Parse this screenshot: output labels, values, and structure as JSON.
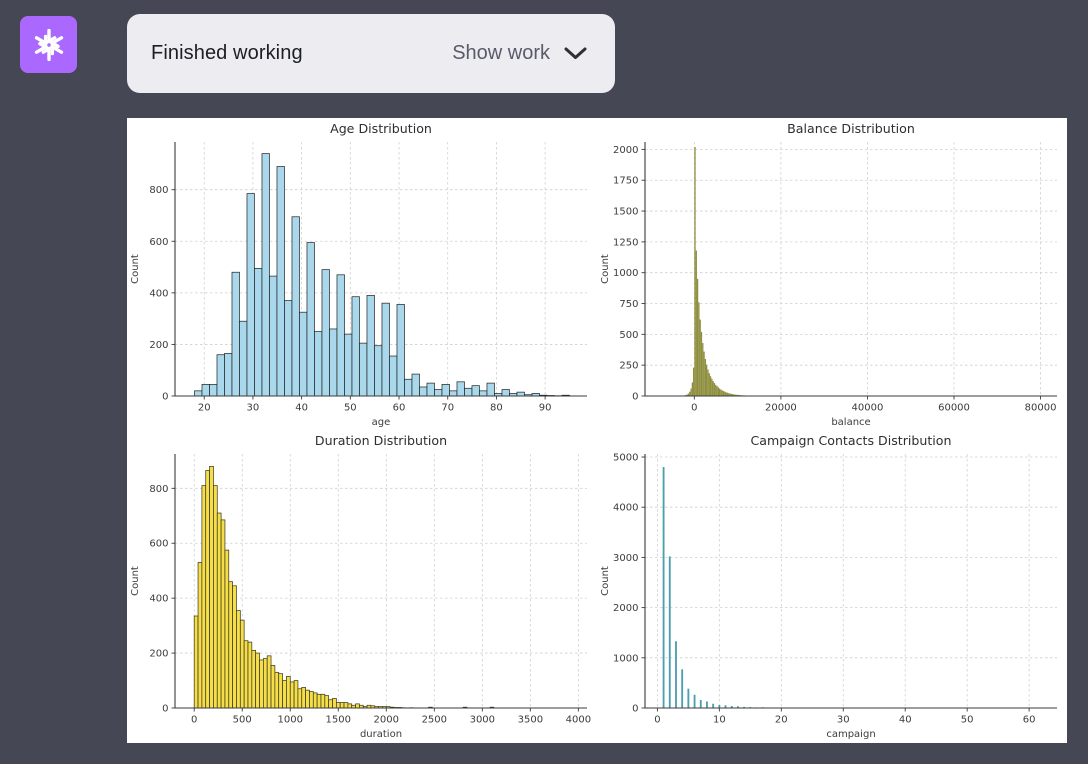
{
  "page": {
    "background_color": "#454754",
    "panel_color": "#ffffff"
  },
  "header": {
    "avatar_color": "#AB68FF",
    "avatar_icon": "openai-logo",
    "card_color": "#ECECF1",
    "status_text": "Finished working",
    "action_label": "Show work",
    "chevron_icon": "chevron-down"
  },
  "chart_data": [
    {
      "type": "bar",
      "title": "Age Distribution",
      "xlabel": "age",
      "ylabel": "Count",
      "bar_color": "#a9d8ec",
      "edge_color": "#1f1f1f",
      "has_edge": true,
      "bar_rel_width": 1,
      "bin_start": 18,
      "bin_width": 1.54,
      "values": [
        20,
        45,
        45,
        160,
        165,
        480,
        290,
        785,
        495,
        940,
        465,
        890,
        370,
        695,
        325,
        595,
        250,
        490,
        260,
        470,
        240,
        385,
        205,
        390,
        195,
        360,
        155,
        355,
        65,
        85,
        35,
        50,
        25,
        45,
        20,
        55,
        30,
        40,
        20,
        50,
        10,
        25,
        10,
        15,
        5,
        10,
        3,
        2,
        1,
        3
      ],
      "xlim": [
        14,
        98.6
      ],
      "ylim": [
        0,
        985
      ],
      "xticks": [
        20,
        30,
        40,
        50,
        60,
        70,
        80,
        90
      ],
      "yticks": [
        0,
        200,
        400,
        600,
        800
      ],
      "grid": true,
      "legend": null
    },
    {
      "type": "bar",
      "title": "Balance Distribution",
      "xlabel": "balance",
      "ylabel": "Count",
      "bar_color": "#8e8f3e",
      "edge_color": "#8e8f3e",
      "has_edge": false,
      "bar_rel_width": 1,
      "bin_start": -3000,
      "bin_width": 300,
      "values": [
        2,
        3,
        5,
        8,
        12,
        20,
        35,
        60,
        110,
        230,
        2020,
        1180,
        950,
        760,
        620,
        520,
        430,
        360,
        300,
        255,
        215,
        185,
        160,
        140,
        120,
        105,
        90,
        80,
        70,
        60,
        52,
        45,
        40,
        35,
        30,
        26,
        23,
        20,
        17,
        15,
        13,
        11,
        10,
        9,
        8,
        7,
        6,
        5,
        5,
        4,
        4,
        3,
        3,
        2,
        2,
        2,
        1,
        1,
        1,
        1
      ],
      "xlim": [
        -11400,
        83800
      ],
      "ylim": [
        0,
        2060
      ],
      "xticks": [
        0,
        20000,
        40000,
        60000,
        80000
      ],
      "yticks": [
        0,
        250,
        500,
        750,
        1000,
        1250,
        1500,
        1750,
        2000
      ],
      "grid": true,
      "legend": null
    },
    {
      "type": "bar",
      "title": "Duration Distribution",
      "xlabel": "duration",
      "ylabel": "Count",
      "bar_color": "#f6de4b",
      "edge_color": "#33331a",
      "has_edge": true,
      "bar_rel_width": 1,
      "bin_start": 0,
      "bin_width": 40,
      "values": [
        335,
        530,
        810,
        865,
        880,
        810,
        710,
        685,
        575,
        460,
        445,
        355,
        320,
        245,
        240,
        210,
        200,
        175,
        180,
        190,
        155,
        130,
        125,
        100,
        115,
        95,
        100,
        70,
        75,
        65,
        60,
        55,
        50,
        50,
        45,
        30,
        35,
        20,
        20,
        20,
        15,
        10,
        15,
        10,
        5,
        10,
        8,
        5,
        5,
        5,
        5,
        3,
        2,
        2,
        1,
        0,
        1,
        0,
        0,
        0,
        0,
        3,
        0,
        0,
        0,
        0,
        0,
        0,
        0,
        0,
        3,
        0,
        0,
        0,
        0,
        0,
        0,
        3,
        0
      ],
      "xlim": [
        -200,
        4090
      ],
      "ylim": [
        0,
        925
      ],
      "xticks": [
        0,
        500,
        1000,
        1500,
        2000,
        2500,
        3000,
        3500,
        4000
      ],
      "yticks": [
        0,
        200,
        400,
        600,
        800
      ],
      "grid": true,
      "legend": null
    },
    {
      "type": "bar",
      "title": "Campaign Contacts Distribution",
      "xlabel": "campaign",
      "ylabel": "Count",
      "bar_color": "#4d9fae",
      "edge_color": "#4d9fae",
      "has_edge": false,
      "bar_rel_width": 0.3,
      "bin_start": 0.5,
      "bin_width": 1,
      "values": [
        4800,
        3020,
        1330,
        770,
        385,
        265,
        160,
        130,
        85,
        60,
        55,
        40,
        35,
        22,
        18,
        12,
        16,
        8,
        6,
        8,
        5,
        4,
        4,
        3,
        3,
        2,
        0,
        3,
        2,
        2,
        2,
        3,
        1,
        0,
        1,
        2,
        0,
        1,
        0,
        0,
        1,
        0,
        2,
        1,
        0,
        1,
        0,
        0,
        0,
        1,
        0,
        0,
        0,
        0,
        1,
        0,
        0,
        1,
        0,
        0,
        0,
        0,
        2
      ],
      "xlim": [
        -2,
        64.5
      ],
      "ylim": [
        0,
        5060
      ],
      "xticks": [
        0,
        10,
        20,
        30,
        40,
        50,
        60
      ],
      "yticks": [
        0,
        1000,
        2000,
        3000,
        4000,
        5000
      ],
      "grid": true,
      "legend": null
    }
  ]
}
